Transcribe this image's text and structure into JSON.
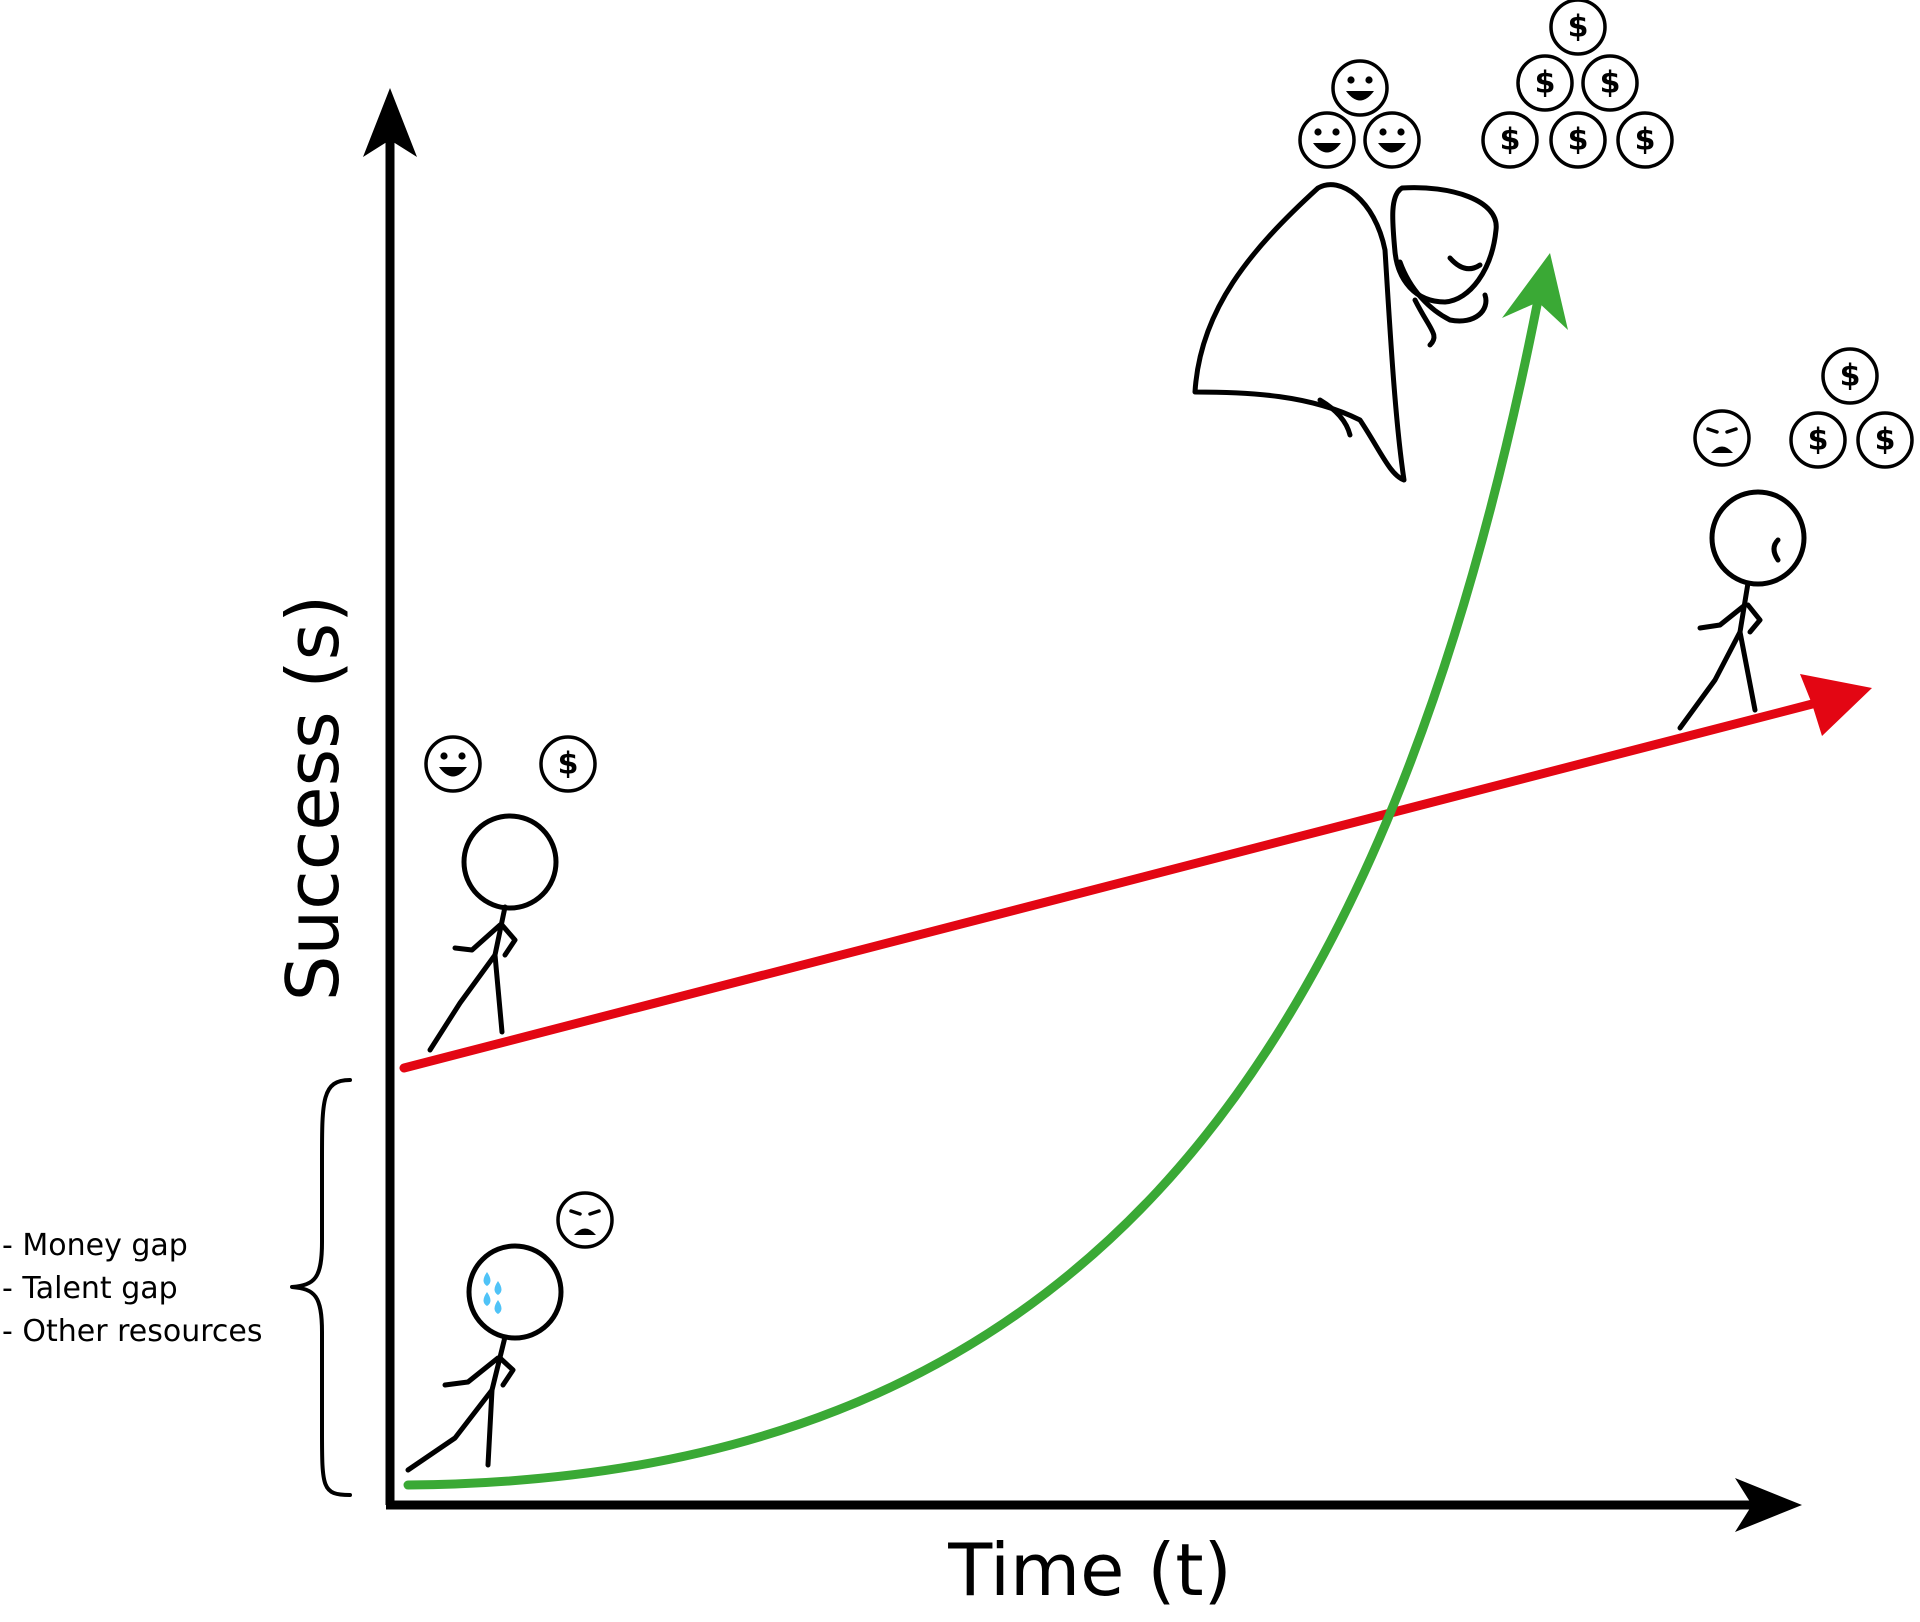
{
  "axes": {
    "x_label": "Time (t)",
    "y_label": "Success (s)"
  },
  "gap_notes": [
    "- Money gap",
    "- Talent gap",
    "- Other resources"
  ],
  "coin_symbol": "$",
  "colors": {
    "axis": "#000000",
    "red_path": "#e30613",
    "green_path": "#3aa935",
    "sweat": "#4fc3f7"
  },
  "paths": [
    {
      "name": "linear-path",
      "color": "red",
      "shape": "straight"
    },
    {
      "name": "exponential-path",
      "color": "green",
      "shape": "curve"
    }
  ]
}
